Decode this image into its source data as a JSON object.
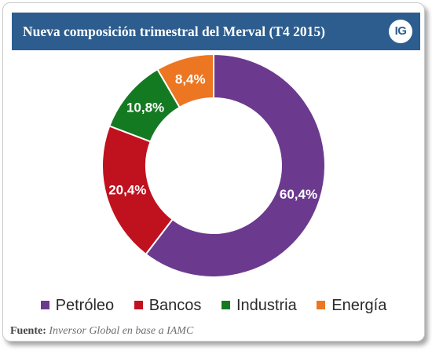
{
  "header": {
    "title": "Nueva composición trimestral del Merval (T4 2015)",
    "logo_text": "IG"
  },
  "chart_data": {
    "type": "pie",
    "title": "Nueva composición trimestral del Merval (T4 2015)",
    "donut": true,
    "categories": [
      "Petróleo",
      "Bancos",
      "Industria",
      "Energía"
    ],
    "values": [
      60.4,
      20.4,
      10.8,
      8.4
    ],
    "labels": [
      "60,4%",
      "20,4%",
      "10,8%",
      "8,4%"
    ],
    "colors": [
      "#6b3a8e",
      "#c0111f",
      "#147a22",
      "#ec7621"
    ],
    "legend_position": "bottom"
  },
  "legend": {
    "items": [
      {
        "label": "Petróleo",
        "color": "#6b3a8e"
      },
      {
        "label": "Bancos",
        "color": "#c0111f"
      },
      {
        "label": "Industria",
        "color": "#147a22"
      },
      {
        "label": "Energía",
        "color": "#ec7621"
      }
    ]
  },
  "source": {
    "key": "Fuente:",
    "text": "Inversor Global en base a IAMC"
  }
}
